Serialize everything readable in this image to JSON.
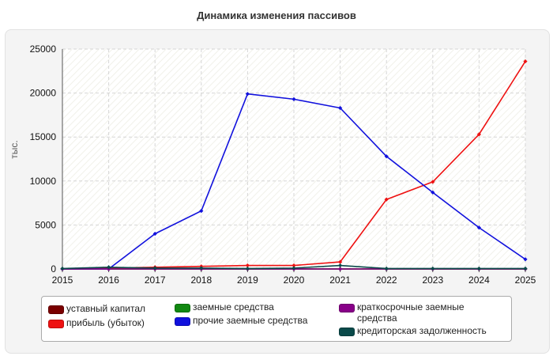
{
  "title": "Динамика изменения пассивов",
  "chart_data": {
    "type": "line",
    "title": "Динамика изменения пассивов",
    "xlabel": "",
    "ylabel": "тыс.",
    "x": [
      2015,
      2016,
      2017,
      2018,
      2019,
      2020,
      2021,
      2022,
      2023,
      2024,
      2025
    ],
    "xlim": [
      2015,
      2025
    ],
    "ylim": [
      0,
      25000
    ],
    "yticks": [
      0,
      5000,
      10000,
      15000,
      20000,
      25000
    ],
    "grid": true,
    "legend_position": "bottom",
    "series": [
      {
        "name": "уставный капитал",
        "color": "#7a0000",
        "values": [
          10,
          10,
          10,
          10,
          10,
          10,
          10,
          10,
          10,
          10,
          10
        ]
      },
      {
        "name": "прибыль (убыток)",
        "color": "#ee1111",
        "values": [
          0,
          100,
          200,
          300,
          400,
          400,
          800,
          7900,
          9900,
          15300,
          23600
        ]
      },
      {
        "name": "заемные средства",
        "color": "#118811",
        "values": [
          0,
          0,
          0,
          0,
          0,
          0,
          0,
          0,
          0,
          0,
          0
        ]
      },
      {
        "name": "прочие заемные средства",
        "color": "#1111dd",
        "values": [
          0,
          0,
          4000,
          6600,
          19900,
          19300,
          18300,
          12800,
          8700,
          4700,
          1100
        ]
      },
      {
        "name": "краткосрочные заемные средства",
        "color": "#880088",
        "values": [
          0,
          0,
          0,
          0,
          0,
          0,
          0,
          0,
          0,
          0,
          0
        ]
      },
      {
        "name": "кредиторская задолженность",
        "color": "#0a4a4a",
        "values": [
          50,
          200,
          100,
          100,
          50,
          100,
          400,
          50,
          50,
          50,
          50
        ]
      }
    ]
  }
}
